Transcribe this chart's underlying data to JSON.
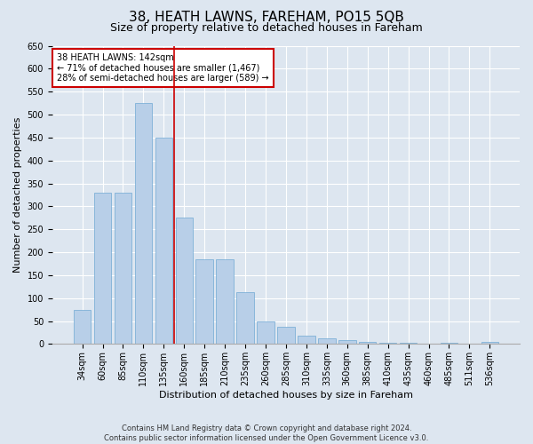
{
  "title": "38, HEATH LAWNS, FAREHAM, PO15 5QB",
  "subtitle": "Size of property relative to detached houses in Fareham",
  "xlabel": "Distribution of detached houses by size in Fareham",
  "ylabel": "Number of detached properties",
  "footer_line1": "Contains HM Land Registry data © Crown copyright and database right 2024.",
  "footer_line2": "Contains public sector information licensed under the Open Government Licence v3.0.",
  "categories": [
    "34sqm",
    "60sqm",
    "85sqm",
    "110sqm",
    "135sqm",
    "160sqm",
    "185sqm",
    "210sqm",
    "235sqm",
    "260sqm",
    "285sqm",
    "310sqm",
    "335sqm",
    "360sqm",
    "385sqm",
    "410sqm",
    "435sqm",
    "460sqm",
    "485sqm",
    "511sqm",
    "536sqm"
  ],
  "values": [
    75,
    330,
    330,
    525,
    450,
    275,
    185,
    185,
    113,
    50,
    38,
    18,
    13,
    8,
    5,
    3,
    3,
    1,
    3,
    1,
    5
  ],
  "bar_color": "#b8cfe8",
  "bar_edge_color": "#6fa8d4",
  "vline_color": "#cc0000",
  "vline_index": 4.5,
  "annotation_text": "38 HEATH LAWNS: 142sqm\n← 71% of detached houses are smaller (1,467)\n28% of semi-detached houses are larger (589) →",
  "annotation_box_color": "white",
  "annotation_box_edge_color": "#cc0000",
  "ylim": [
    0,
    650
  ],
  "yticks": [
    0,
    50,
    100,
    150,
    200,
    250,
    300,
    350,
    400,
    450,
    500,
    550,
    600,
    650
  ],
  "background_color": "#dde6f0",
  "plot_background_color": "#dde6f0",
  "grid_color": "white",
  "title_fontsize": 11,
  "subtitle_fontsize": 9,
  "tick_fontsize": 7,
  "ylabel_fontsize": 8,
  "xlabel_fontsize": 8,
  "annotation_fontsize": 7,
  "footer_fontsize": 6
}
